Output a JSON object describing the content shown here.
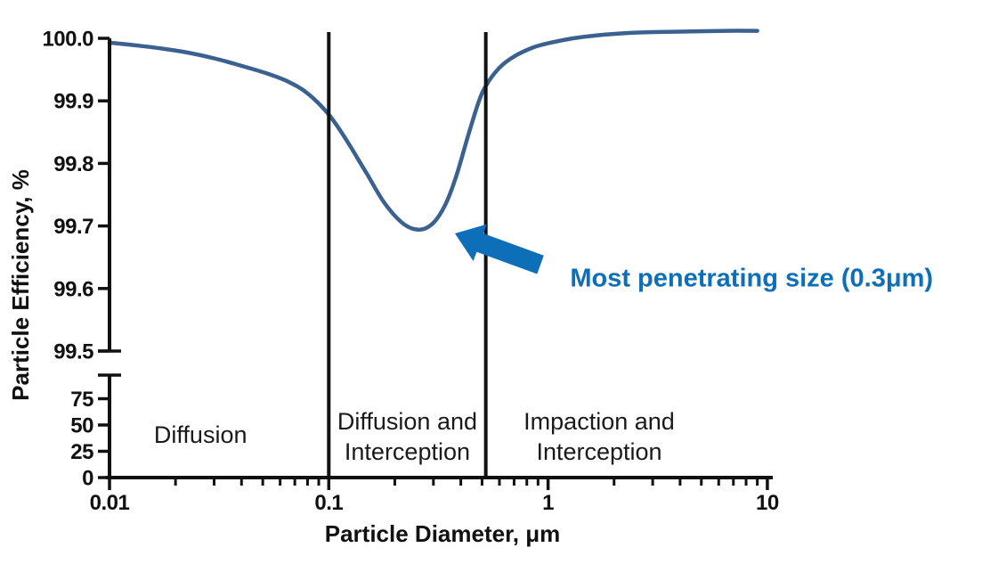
{
  "figure": {
    "background_color": "#ffffff"
  },
  "chart_data": {
    "type": "line",
    "title": "",
    "xlabel": "Particle Diameter, μm",
    "ylabel": "Particle Efficiency, %",
    "x_scale": "log",
    "x_range": [
      0.01,
      10
    ],
    "x_tick_labels": [
      "0.01",
      "0.1",
      "1",
      "10"
    ],
    "x_tick_values": [
      0.01,
      0.1,
      1,
      10
    ],
    "y_axis_broken": true,
    "y_upper_range": [
      99.5,
      100.0
    ],
    "y_upper_tick_labels": [
      "100.0",
      "99.9",
      "99.8",
      "99.7",
      "99.6",
      "99.5"
    ],
    "y_upper_tick_values": [
      100.0,
      99.9,
      99.8,
      99.7,
      99.6,
      99.5
    ],
    "y_lower_tick_labels": [
      "75",
      "50",
      "25",
      "0"
    ],
    "y_lower_tick_values": [
      75,
      50,
      25,
      0
    ],
    "grid": false,
    "legend": false,
    "series": [
      {
        "name": "filter-efficiency-curve",
        "color": "#3b6191",
        "points": [
          [
            0.01,
            99.993
          ],
          [
            0.013,
            99.989
          ],
          [
            0.017,
            99.984
          ],
          [
            0.022,
            99.978
          ],
          [
            0.03,
            99.968
          ],
          [
            0.04,
            99.956
          ],
          [
            0.052,
            99.944
          ],
          [
            0.065,
            99.931
          ],
          [
            0.08,
            99.912
          ],
          [
            0.1,
            99.878
          ],
          [
            0.12,
            99.838
          ],
          [
            0.15,
            99.782
          ],
          [
            0.18,
            99.736
          ],
          [
            0.22,
            99.703
          ],
          [
            0.26,
            99.694
          ],
          [
            0.3,
            99.705
          ],
          [
            0.34,
            99.734
          ],
          [
            0.38,
            99.778
          ],
          [
            0.43,
            99.842
          ],
          [
            0.48,
            99.896
          ],
          [
            0.52,
            99.924
          ],
          [
            0.6,
            99.953
          ],
          [
            0.7,
            99.971
          ],
          [
            0.85,
            99.985
          ],
          [
            1.0,
            99.992
          ],
          [
            1.3,
            100.0
          ],
          [
            1.7,
            100.005
          ],
          [
            2.2,
            100.008
          ],
          [
            3.0,
            100.01
          ],
          [
            4.5,
            100.011
          ],
          [
            6.5,
            100.012
          ],
          [
            9.0,
            100.012
          ]
        ]
      }
    ],
    "minimum_point": {
      "diameter": 0.26,
      "efficiency": 99.69
    },
    "boundary_lines": {
      "color": "#111111",
      "diameters": [
        0.1,
        0.52
      ]
    },
    "region_labels": [
      {
        "lines": [
          "Diffusion"
        ],
        "center_diameter": 0.026
      },
      {
        "lines": [
          "Diffusion and",
          "Interception"
        ],
        "center_diameter": 0.228
      },
      {
        "lines": [
          "Impaction and",
          "Interception"
        ],
        "center_diameter": 1.71
      }
    ],
    "annotation": {
      "label": "Most penetrating size (0.3μm)",
      "color": "#0d6fb8",
      "arrow": {
        "tip": {
          "diameter": 0.376,
          "efficiency": 99.688
        },
        "tail": {
          "diameter": 0.923,
          "efficiency": 99.638
        }
      },
      "label_anchor": {
        "diameter": 1.26,
        "efficiency": 99.603
      }
    },
    "axis_color": "#111111"
  }
}
